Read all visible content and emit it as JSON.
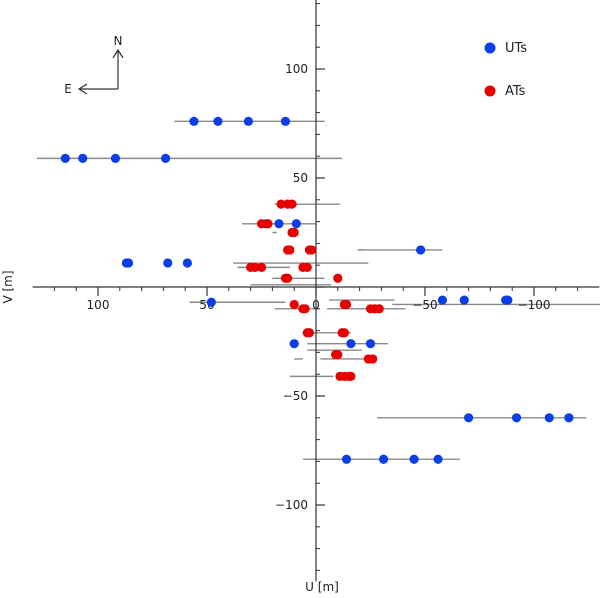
{
  "chart_data": {
    "type": "scatter",
    "xlabel": "U [m]",
    "ylabel": "V [m]",
    "xlim": [
      130,
      -130
    ],
    "ylim": [
      -135,
      140
    ],
    "x_reversed": true,
    "x_ticks": [
      100,
      50,
      0,
      -50,
      -100
    ],
    "x_tick_labels": [
      "100",
      "50",
      "0",
      "−50",
      "−100"
    ],
    "y_ticks": [
      100,
      50,
      0,
      -50,
      -100
    ],
    "y_tick_labels": [
      "100",
      "50",
      "0",
      "−50",
      "−100"
    ],
    "axes_through_origin": true,
    "compass": {
      "north": "N",
      "east": "E"
    },
    "legend": {
      "position": "top-right",
      "entries": [
        "UTs",
        "ATs"
      ]
    },
    "series": [
      {
        "name": "UTs",
        "color": "#0b3ee6",
        "points": [
          [
            56,
            76
          ],
          [
            45,
            76
          ],
          [
            31,
            76
          ],
          [
            14,
            76
          ],
          [
            115,
            59
          ],
          [
            107,
            59
          ],
          [
            92,
            59
          ],
          [
            69,
            59
          ],
          [
            23,
            29
          ],
          [
            17,
            29
          ],
          [
            9,
            29
          ],
          [
            -48,
            17
          ],
          [
            87,
            11
          ],
          [
            86,
            11
          ],
          [
            68,
            11
          ],
          [
            59,
            11
          ],
          [
            -58,
            -6
          ],
          [
            -68,
            -6
          ],
          [
            -87,
            -6
          ],
          [
            -88,
            -6
          ],
          [
            48,
            -7
          ],
          [
            10,
            -26
          ],
          [
            -16,
            -26
          ],
          [
            -25,
            -26
          ],
          [
            -70,
            -60
          ],
          [
            -92,
            -60
          ],
          [
            -107,
            -60
          ],
          [
            -116,
            -60
          ],
          [
            -14,
            -79
          ],
          [
            -31,
            -79
          ],
          [
            -45,
            -79
          ],
          [
            -56,
            -79
          ]
        ]
      },
      {
        "name": "ATs",
        "color": "#e60000",
        "points": [
          [
            16,
            38
          ],
          [
            13,
            38
          ],
          [
            11,
            38
          ],
          [
            25,
            29
          ],
          [
            22,
            29
          ],
          [
            11,
            25
          ],
          [
            10,
            25
          ],
          [
            13,
            17
          ],
          [
            12,
            17
          ],
          [
            3,
            17
          ],
          [
            2,
            17
          ],
          [
            30,
            9
          ],
          [
            28,
            9
          ],
          [
            25,
            9
          ],
          [
            6,
            9
          ],
          [
            4,
            9
          ],
          [
            14,
            4
          ],
          [
            13,
            4
          ],
          [
            -10,
            4
          ],
          [
            10,
            -8
          ],
          [
            -13,
            -8
          ],
          [
            -14,
            -8
          ],
          [
            6,
            -10
          ],
          [
            5,
            -10
          ],
          [
            -25,
            -10
          ],
          [
            -27,
            -10
          ],
          [
            -29,
            -10
          ],
          [
            4,
            -21
          ],
          [
            3,
            -21
          ],
          [
            -13,
            -21
          ],
          [
            -12,
            -21
          ],
          [
            -9,
            -31
          ],
          [
            -10,
            -31
          ],
          [
            -24,
            -33
          ],
          [
            -26,
            -33
          ],
          [
            -11,
            -41
          ],
          [
            -13,
            -41
          ],
          [
            -15,
            -41
          ],
          [
            -16,
            -41
          ]
        ]
      }
    ],
    "baselines": [
      [
        -4,
        65,
        76
      ],
      [
        -12,
        128,
        59
      ],
      [
        -11,
        19,
        38
      ],
      [
        0,
        34,
        29
      ],
      [
        -58,
        -19,
        17
      ],
      [
        18,
        20,
        25
      ],
      [
        -24,
        38,
        11
      ],
      [
        -20,
        -21,
        17
      ],
      [
        12,
        36,
        9
      ],
      [
        -4,
        20,
        4
      ],
      [
        -7,
        30,
        1
      ],
      [
        -36,
        -6,
        -6
      ],
      [
        -132,
        -35,
        -8
      ],
      [
        -1,
        19,
        -10
      ],
      [
        -41,
        -5,
        -10
      ],
      [
        14,
        58,
        -7
      ],
      [
        -16,
        3,
        -21
      ],
      [
        -33,
        4,
        -26
      ],
      [
        -21,
        4,
        -29
      ],
      [
        -8,
        12,
        -41
      ],
      [
        -124,
        -28,
        -60
      ],
      [
        -66,
        6,
        -79
      ],
      [
        -23,
        -2,
        -33
      ],
      [
        10,
        6,
        -33
      ]
    ]
  },
  "colors": {
    "axis": "#333333",
    "baseline": "#888888"
  }
}
